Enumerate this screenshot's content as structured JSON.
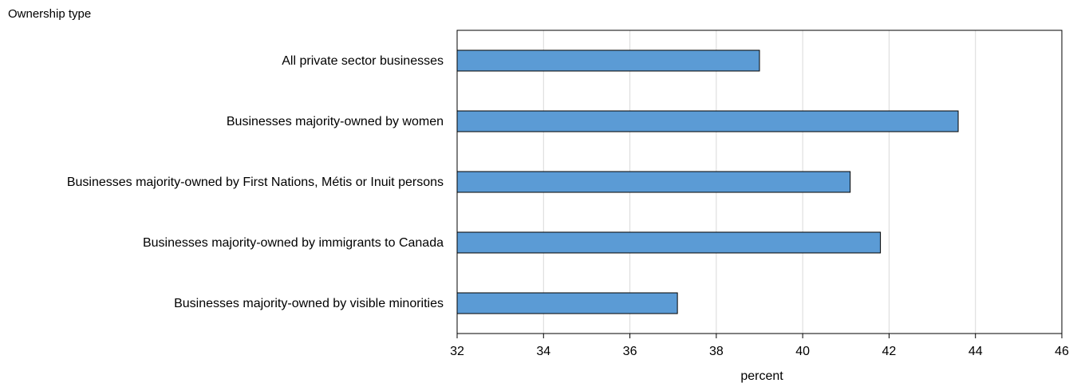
{
  "chart_data": {
    "type": "bar",
    "orientation": "horizontal",
    "ylabel": "Ownership type",
    "xlabel": "percent",
    "categories": [
      "All private sector businesses",
      "Businesses majority-owned by women",
      "Businesses majority-owned by First Nations, Métis or Inuit persons",
      "Businesses majority-owned by immigrants to Canada",
      "Businesses majority-owned by visible minorities"
    ],
    "values": [
      39.0,
      43.6,
      41.1,
      41.8,
      37.1
    ],
    "xlim": [
      32,
      46
    ],
    "xticks": [
      32,
      34,
      36,
      38,
      40,
      42,
      44,
      46
    ],
    "grid": "vertical",
    "legend": "none",
    "bar_color": "#5b9bd5",
    "bar_edge_color": "#000000",
    "grid_color": "#d9d9d9"
  }
}
